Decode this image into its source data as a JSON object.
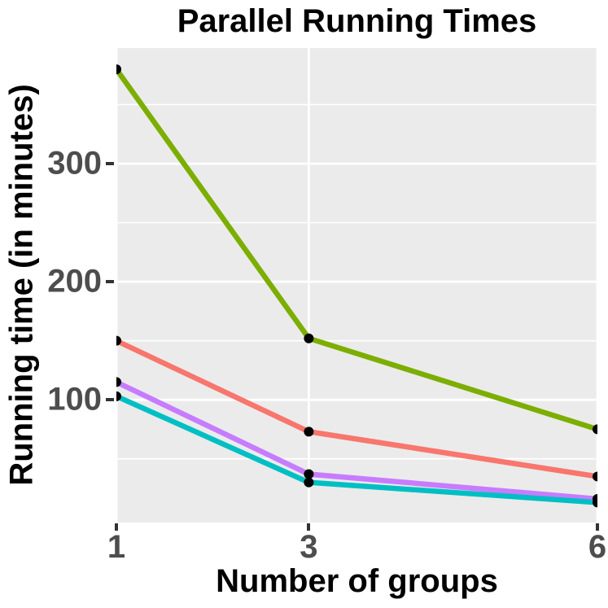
{
  "chart_data": {
    "type": "line",
    "title": "Parallel Running Times",
    "xlabel": "Number of groups",
    "ylabel": "Running time (in minutes)",
    "x": [
      1,
      3,
      6
    ],
    "x_tick_labels": [
      "1",
      "3",
      "6"
    ],
    "y_ticks": [
      100,
      200,
      300
    ],
    "y_tick_labels": [
      "100",
      "200",
      "300"
    ],
    "y_minor_ticks": [
      50,
      150,
      250,
      350
    ],
    "xlim": [
      1,
      6
    ],
    "ylim": [
      -4,
      398
    ],
    "grid": "white major and minor horizontal lines, white major vertical lines, no legend",
    "legend_position": "none",
    "series": [
      {
        "name": "green-series",
        "color": "#7CAE00",
        "values": [
          380,
          152,
          75
        ]
      },
      {
        "name": "red-series",
        "color": "#F8766D",
        "values": [
          150,
          73,
          35
        ]
      },
      {
        "name": "purple-series",
        "color": "#C77CFF",
        "values": [
          115,
          37,
          16
        ]
      },
      {
        "name": "cyan-series",
        "color": "#00BFC4",
        "values": [
          103,
          30,
          13
        ]
      }
    ],
    "point_color": "#000000",
    "panel_bg_color": "#EBEBEB",
    "grid_color": "#FFFFFF",
    "tick_label_color": "#4D4D4D",
    "axis_title_color": "#000000"
  }
}
